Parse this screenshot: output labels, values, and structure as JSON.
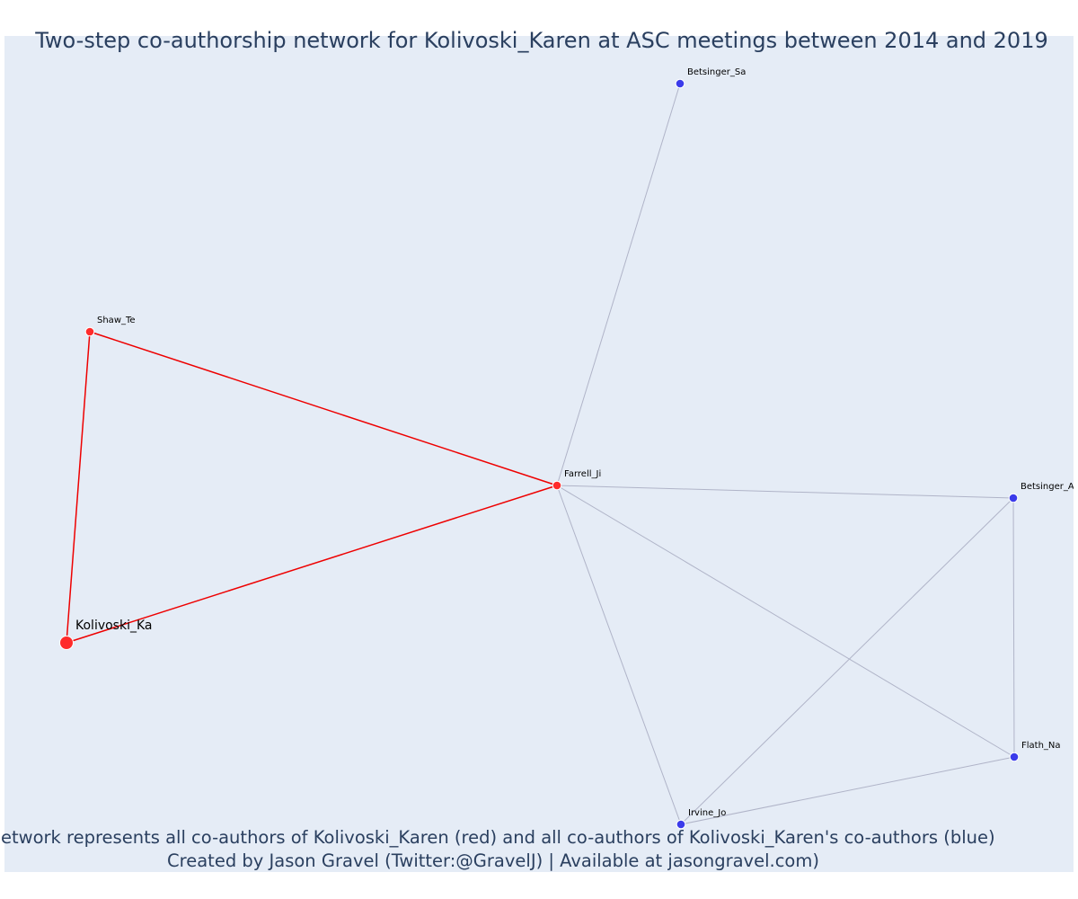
{
  "title": "Two-step co-authorship network for Kolivoski_Karen at ASC meetings between 2014 and 2019",
  "caption": {
    "line1": "Network represents all co-authors of Kolivoski_Karen (red) and all co-authors of Kolivoski_Karen's co-authors (blue)",
    "line2": "Created by Jason Gravel (Twitter:@GravelJ) | Available at jasongravel.com)"
  },
  "colors": {
    "background": "#e5ecf6",
    "primary": "#ff2b2b",
    "secondary": "#3b3bea",
    "primary_edge": "#ee0000",
    "secondary_edge": "#b0b4c8"
  },
  "network": {
    "nodes": [
      {
        "id": "Kolivoski_Ka",
        "label": "Kolivoski_Ka",
        "group": "focal"
      },
      {
        "id": "Shaw_Te",
        "label": "Shaw_Te",
        "group": "coauthor"
      },
      {
        "id": "Farrell_Ji",
        "label": "Farrell_Ji",
        "group": "coauthor"
      },
      {
        "id": "Betsinger_Sa",
        "label": "Betsinger_Sa",
        "group": "second"
      },
      {
        "id": "Betsinger_Aa",
        "label": "Betsinger_Aa",
        "group": "second"
      },
      {
        "id": "Flath_Na",
        "label": "Flath_Na",
        "group": "second"
      },
      {
        "id": "Irvine_Jo",
        "label": "Irvine_Jo",
        "group": "second"
      }
    ],
    "edges": [
      {
        "source": "Kolivoski_Ka",
        "target": "Shaw_Te",
        "type": "primary"
      },
      {
        "source": "Kolivoski_Ka",
        "target": "Farrell_Ji",
        "type": "primary"
      },
      {
        "source": "Shaw_Te",
        "target": "Farrell_Ji",
        "type": "primary"
      },
      {
        "source": "Farrell_Ji",
        "target": "Betsinger_Sa",
        "type": "secondary"
      },
      {
        "source": "Farrell_Ji",
        "target": "Betsinger_Aa",
        "type": "secondary"
      },
      {
        "source": "Farrell_Ji",
        "target": "Flath_Na",
        "type": "secondary"
      },
      {
        "source": "Farrell_Ji",
        "target": "Irvine_Jo",
        "type": "secondary"
      },
      {
        "source": "Betsinger_Aa",
        "target": "Flath_Na",
        "type": "secondary"
      },
      {
        "source": "Betsinger_Aa",
        "target": "Irvine_Jo",
        "type": "secondary"
      },
      {
        "source": "Flath_Na",
        "target": "Irvine_Jo",
        "type": "secondary"
      }
    ]
  }
}
